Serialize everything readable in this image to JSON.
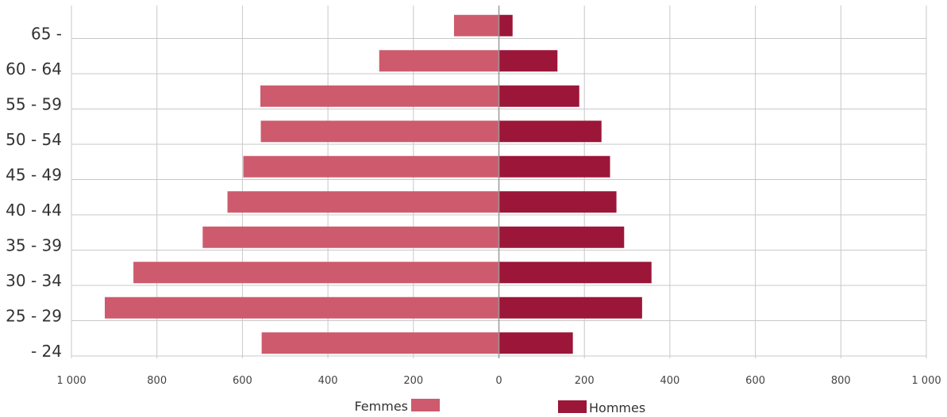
{
  "chart_data": {
    "type": "bar",
    "orientation": "horizontal",
    "categories": [
      "65 -",
      "60 - 64",
      "55 - 59",
      "50 - 54",
      "45 - 49",
      "40 - 44",
      "35 - 39",
      "30 - 34",
      "25 - 29",
      "- 24"
    ],
    "series": [
      {
        "name": "Femmes",
        "color": "#cd5b6d",
        "side": "left",
        "values": [
          105,
          280,
          558,
          557,
          598,
          635,
          693,
          855,
          922,
          555
        ]
      },
      {
        "name": "Hommes",
        "color": "#9b1638",
        "side": "right",
        "values": [
          32,
          137,
          188,
          240,
          260,
          275,
          293,
          357,
          335,
          173
        ]
      }
    ],
    "xlim": [
      -1000,
      1000
    ],
    "x_ticks": [
      -1000,
      -800,
      -600,
      -400,
      -200,
      0,
      200,
      400,
      600,
      800,
      1000
    ],
    "x_tick_labels": [
      "1 000",
      "800",
      "600",
      "400",
      "200",
      "0",
      "200",
      "400",
      "600",
      "800",
      "1 000"
    ],
    "grid": true,
    "legend": "bottom"
  }
}
